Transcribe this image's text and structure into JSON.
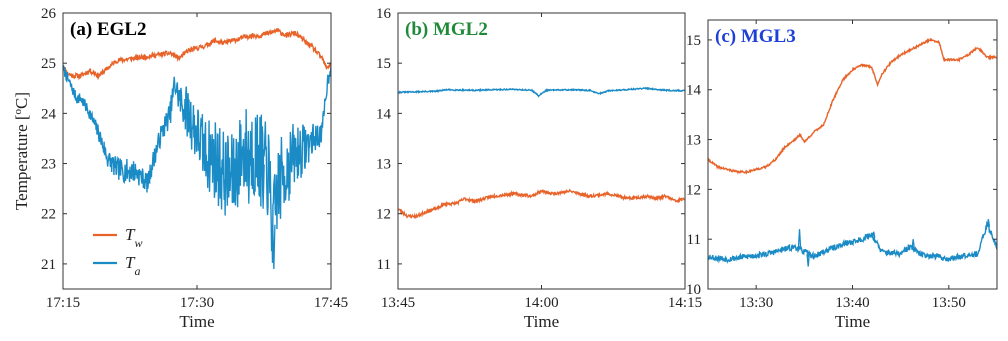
{
  "colors": {
    "tw": "#e8632a",
    "ta": "#1b8bc6",
    "title_a": "#000000",
    "title_b": "#1e8a3a",
    "title_c": "#1c40d8"
  },
  "chart_data": [
    {
      "type": "line",
      "title": "(a) EGL2",
      "xlabel": "Time",
      "ylabel": "Temperature [°C]",
      "ylabel_parts": {
        "pre": "Temperature [",
        "sup": "o",
        "post": "C]"
      },
      "xlim": [
        0,
        30
      ],
      "ylim": [
        20.5,
        26
      ],
      "x_ticks": [
        0,
        15,
        30
      ],
      "x_tick_labels": [
        "17:15",
        "17:30",
        "17:45"
      ],
      "y_ticks": [
        21,
        22,
        23,
        24,
        25,
        26
      ],
      "y_tick_labels": [
        "21",
        "22",
        "23",
        "24",
        "25",
        "26"
      ],
      "legend": {
        "position": "lower-left",
        "entries": [
          {
            "base": "T",
            "sub": "w",
            "series": "Tw"
          },
          {
            "base": "T",
            "sub": "a",
            "series": "Ta"
          }
        ]
      },
      "series": [
        {
          "name": "Tw",
          "color": "#e8632a",
          "noise": 0.05,
          "seed": 11,
          "points": [
            [
              0,
              24.95
            ],
            [
              0.5,
              24.8
            ],
            [
              1,
              24.75
            ],
            [
              2,
              24.75
            ],
            [
              3,
              24.85
            ],
            [
              4,
              24.75
            ],
            [
              5,
              24.9
            ],
            [
              6,
              25.05
            ],
            [
              8,
              25.1
            ],
            [
              10,
              25.15
            ],
            [
              12,
              25.2
            ],
            [
              13,
              25.1
            ],
            [
              14,
              25.25
            ],
            [
              15,
              25.3
            ],
            [
              16,
              25.35
            ],
            [
              17,
              25.45
            ],
            [
              18,
              25.4
            ],
            [
              19,
              25.45
            ],
            [
              20,
              25.5
            ],
            [
              21,
              25.55
            ],
            [
              22,
              25.55
            ],
            [
              23,
              25.6
            ],
            [
              24,
              25.65
            ],
            [
              25,
              25.55
            ],
            [
              26,
              25.6
            ],
            [
              27,
              25.45
            ],
            [
              28,
              25.3
            ],
            [
              29,
              25.1
            ],
            [
              29.5,
              24.9
            ],
            [
              30,
              25.0
            ]
          ]
        },
        {
          "name": "Ta",
          "color": "#1b8bc6",
          "noise_profile": [
            [
              0,
              0.1
            ],
            [
              3,
              0.12
            ],
            [
              5,
              0.2
            ],
            [
              7.5,
              0.25
            ],
            [
              9,
              0.2
            ],
            [
              11,
              0.2
            ],
            [
              13,
              0.3
            ],
            [
              14,
              0.55
            ],
            [
              16,
              0.7
            ],
            [
              17,
              0.85
            ],
            [
              20,
              0.9
            ],
            [
              22,
              0.95
            ],
            [
              24,
              0.9
            ],
            [
              25,
              0.8
            ],
            [
              27,
              0.5
            ],
            [
              28,
              0.3
            ],
            [
              30,
              0.15
            ]
          ],
          "seed": 7,
          "points": [
            [
              0,
              24.9
            ],
            [
              0.5,
              24.7
            ],
            [
              1,
              24.5
            ],
            [
              1.5,
              24.3
            ],
            [
              2,
              24.3
            ],
            [
              3,
              24.0
            ],
            [
              4,
              23.6
            ],
            [
              5,
              23.1
            ],
            [
              6,
              22.9
            ],
            [
              7,
              22.85
            ],
            [
              8,
              22.85
            ],
            [
              9,
              22.7
            ],
            [
              9.5,
              22.6
            ],
            [
              10,
              23.0
            ],
            [
              11,
              23.6
            ],
            [
              12,
              24.0
            ],
            [
              12.5,
              24.6
            ],
            [
              13,
              24.3
            ],
            [
              14,
              24.0
            ],
            [
              15,
              23.6
            ],
            [
              16,
              23.2
            ],
            [
              17,
              23.1
            ],
            [
              18,
              22.8
            ],
            [
              19,
              22.7
            ],
            [
              20,
              23.2
            ],
            [
              21,
              23.3
            ],
            [
              22,
              23.1
            ],
            [
              23,
              22.8
            ],
            [
              23.5,
              21.6
            ],
            [
              24,
              22.5
            ],
            [
              25,
              22.9
            ],
            [
              26,
              23.2
            ],
            [
              27,
              23.3
            ],
            [
              28,
              23.5
            ],
            [
              29,
              23.6
            ],
            [
              29.5,
              24.5
            ],
            [
              30,
              25.0
            ]
          ],
          "spikes": [
            [
              20.8,
              22.2
            ],
            [
              22.4,
              22.1
            ],
            [
              23.6,
              20.9
            ],
            [
              19.4,
              22.6
            ],
            [
              17.6,
              22.3
            ]
          ]
        }
      ]
    },
    {
      "type": "line",
      "title": "(b) MGL2",
      "xlabel": "Time",
      "ylabel": "",
      "xlim": [
        0,
        30
      ],
      "ylim": [
        10.5,
        16
      ],
      "x_ticks": [
        0,
        15,
        30
      ],
      "x_tick_labels": [
        "13:45",
        "14:00",
        "14:15"
      ],
      "y_ticks": [
        11,
        12,
        13,
        14,
        15,
        16
      ],
      "y_tick_labels": [
        "11",
        "12",
        "13",
        "14",
        "15",
        "16"
      ],
      "series": [
        {
          "name": "Tw",
          "color": "#e8632a",
          "noise": 0.03,
          "seed": 23,
          "points": [
            [
              0,
              12.1
            ],
            [
              1,
              11.95
            ],
            [
              2,
              11.95
            ],
            [
              3,
              12.05
            ],
            [
              4,
              12.1
            ],
            [
              5,
              12.2
            ],
            [
              6,
              12.2
            ],
            [
              7,
              12.3
            ],
            [
              8,
              12.25
            ],
            [
              9,
              12.3
            ],
            [
              10,
              12.35
            ],
            [
              12,
              12.4
            ],
            [
              14,
              12.35
            ],
            [
              15,
              12.45
            ],
            [
              16,
              12.4
            ],
            [
              18,
              12.45
            ],
            [
              20,
              12.35
            ],
            [
              22,
              12.4
            ],
            [
              24,
              12.3
            ],
            [
              26,
              12.35
            ],
            [
              27,
              12.3
            ],
            [
              28,
              12.35
            ],
            [
              29,
              12.25
            ],
            [
              30,
              12.3
            ]
          ]
        },
        {
          "name": "Ta",
          "color": "#1b8bc6",
          "noise": 0.012,
          "seed": 31,
          "points": [
            [
              0,
              14.42
            ],
            [
              4,
              14.44
            ],
            [
              5,
              14.47
            ],
            [
              8,
              14.46
            ],
            [
              12,
              14.48
            ],
            [
              14,
              14.46
            ],
            [
              14.7,
              14.35
            ],
            [
              15.5,
              14.46
            ],
            [
              18,
              14.47
            ],
            [
              20,
              14.46
            ],
            [
              21,
              14.39
            ],
            [
              22,
              14.45
            ],
            [
              26,
              14.5
            ],
            [
              28,
              14.46
            ],
            [
              30,
              14.45
            ]
          ]
        }
      ]
    },
    {
      "type": "line",
      "title": "(c) MGL3",
      "xlabel": "Time",
      "ylabel": "",
      "xlim": [
        0,
        30
      ],
      "ylim": [
        10,
        15.4
      ],
      "x_ticks": [
        5,
        15,
        25
      ],
      "x_tick_labels": [
        "13:30",
        "13:40",
        "13:50"
      ],
      "y_ticks": [
        10,
        11,
        12,
        13,
        14,
        15
      ],
      "y_tick_labels": [
        "10",
        "11",
        "12",
        "13",
        "14",
        "15"
      ],
      "series": [
        {
          "name": "Tw",
          "color": "#e8632a",
          "noise": 0.02,
          "seed": 41,
          "points": [
            [
              0,
              12.6
            ],
            [
              1,
              12.45
            ],
            [
              2,
              12.4
            ],
            [
              3,
              12.35
            ],
            [
              4,
              12.35
            ],
            [
              5,
              12.4
            ],
            [
              6,
              12.45
            ],
            [
              7,
              12.6
            ],
            [
              8,
              12.85
            ],
            [
              9,
              13.0
            ],
            [
              9.6,
              13.1
            ],
            [
              10,
              12.95
            ],
            [
              11,
              13.15
            ],
            [
              12,
              13.3
            ],
            [
              13,
              13.8
            ],
            [
              14,
              14.2
            ],
            [
              15,
              14.4
            ],
            [
              16,
              14.5
            ],
            [
              17,
              14.45
            ],
            [
              17.6,
              14.1
            ],
            [
              18,
              14.3
            ],
            [
              19,
              14.55
            ],
            [
              20,
              14.7
            ],
            [
              21,
              14.8
            ],
            [
              22,
              14.9
            ],
            [
              23,
              15.0
            ],
            [
              24,
              14.95
            ],
            [
              24.5,
              14.6
            ],
            [
              25,
              14.6
            ],
            [
              26,
              14.6
            ],
            [
              27,
              14.7
            ],
            [
              28,
              14.85
            ],
            [
              29,
              14.65
            ],
            [
              30,
              14.65
            ]
          ]
        },
        {
          "name": "Ta",
          "color": "#1b8bc6",
          "noise": 0.06,
          "seed": 53,
          "points": [
            [
              0,
              10.65
            ],
            [
              2,
              10.6
            ],
            [
              4,
              10.65
            ],
            [
              6,
              10.7
            ],
            [
              8,
              10.8
            ],
            [
              9,
              10.85
            ],
            [
              10,
              10.75
            ],
            [
              11,
              10.65
            ],
            [
              12,
              10.75
            ],
            [
              14,
              10.9
            ],
            [
              16,
              11.0
            ],
            [
              17,
              11.1
            ],
            [
              18,
              10.75
            ],
            [
              20,
              10.7
            ],
            [
              21,
              10.85
            ],
            [
              22,
              10.7
            ],
            [
              24,
              10.65
            ],
            [
              25,
              10.6
            ],
            [
              26,
              10.65
            ],
            [
              27,
              10.7
            ],
            [
              28,
              10.7
            ],
            [
              29,
              11.3
            ],
            [
              30,
              10.85
            ]
          ],
          "spikes": [
            [
              9.5,
              11.2
            ],
            [
              10.4,
              10.45
            ],
            [
              17.2,
              11.15
            ],
            [
              21.3,
              11.0
            ],
            [
              29.1,
              11.4
            ]
          ]
        }
      ]
    }
  ]
}
